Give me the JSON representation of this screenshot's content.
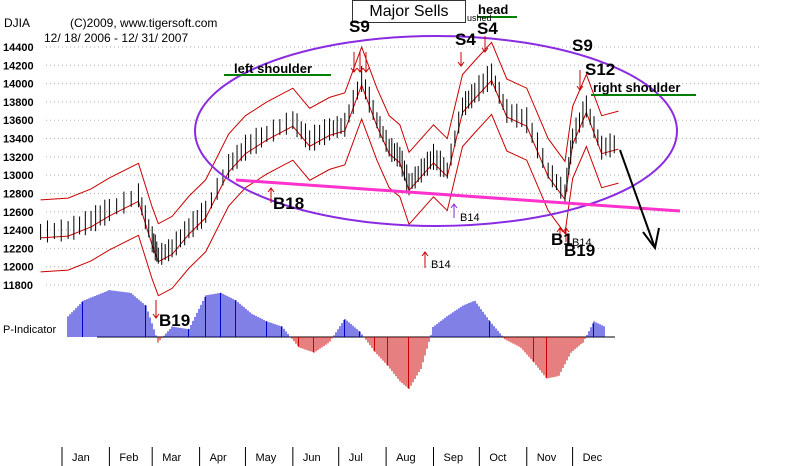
{
  "header": {
    "ticker": "DJIA",
    "copyright": "(C)2009, www.tigersoft.com",
    "date_range": "12/ 18/ 2006 - 12/ 31/ 2007",
    "title": "Major Sells",
    "indicator_label": "P-Indicator"
  },
  "annotations": {
    "head": "head",
    "left_shoulder": "left shoulder",
    "right_shoulder": "right shoulder",
    "small_label": "ushed"
  },
  "signals": {
    "s9_jul": "S9",
    "s4_sep": "S4",
    "s4_oct": "S4",
    "s9_nov": "S9",
    "s12_dec": "S12",
    "b19_feb": "B19",
    "b18_apr": "B18",
    "b14_aug": "B14",
    "b14_sep": "B14",
    "b14_nov": "B14",
    "b1_nov": "B1",
    "b19_nov": "B19"
  },
  "colors": {
    "price": "#000000",
    "bands": "#cc0000",
    "ellipse": "#8a2be2",
    "neckline": "#ff33cc",
    "positive": "#0000cc",
    "negative": "#cc0000",
    "shoulder_underline": "#008000",
    "grid": "#b0b0b0"
  },
  "chart_data": [
    {
      "type": "line",
      "title": "DJIA",
      "ylim": [
        11800,
        14400
      ],
      "y_ticks": [
        "14400",
        "14200",
        "14000",
        "13800",
        "13600",
        "13400",
        "13200",
        "13000",
        "12800",
        "12600",
        "12400",
        "12200",
        "12000",
        "11800"
      ],
      "x_ticks": [
        "Jan",
        "Feb",
        "Mar",
        "Apr",
        "May",
        "Jun",
        "Jul",
        "Aug",
        "Sep",
        "Oct",
        "Nov",
        "Dec"
      ],
      "series": [
        {
          "x": [
            "2006-12-18",
            "2007-01-05",
            "2007-01-20",
            "2007-02-01",
            "2007-02-20",
            "2007-03-01",
            "2007-03-05",
            "2007-03-14",
            "2007-03-25",
            "2007-04-05",
            "2007-04-20",
            "2007-05-01",
            "2007-05-15",
            "2007-06-01",
            "2007-06-12",
            "2007-06-25",
            "2007-07-05",
            "2007-07-16",
            "2007-07-26",
            "2007-08-03",
            "2007-08-10",
            "2007-08-16",
            "2007-08-24",
            "2007-09-01",
            "2007-09-10",
            "2007-09-20",
            "2007-09-28",
            "2007-10-09",
            "2007-10-19",
            "2007-11-01",
            "2007-11-15",
            "2007-11-26",
            "2007-12-01",
            "2007-12-10",
            "2007-12-20",
            "2007-12-31"
          ],
          "values": [
            12380,
            12400,
            12500,
            12620,
            12780,
            12300,
            12120,
            12200,
            12420,
            12600,
            13100,
            13300,
            13450,
            13600,
            13380,
            13500,
            13550,
            14050,
            13600,
            13300,
            13200,
            12900,
            13050,
            13200,
            13050,
            13750,
            13900,
            14100,
            13700,
            13600,
            13050,
            12800,
            13400,
            13750,
            13300,
            13350
          ]
        }
      ]
    },
    {
      "type": "bar",
      "title": "P-Indicator",
      "x_ticks": [
        "Jan",
        "Feb",
        "Mar",
        "Apr",
        "May",
        "Jun",
        "Jul",
        "Aug",
        "Sep",
        "Oct",
        "Nov",
        "Dec"
      ],
      "series": [
        {
          "x": [
            "2007-01-05",
            "2007-01-15",
            "2007-02-01",
            "2007-02-15",
            "2007-02-25",
            "2007-03-05",
            "2007-03-14",
            "2007-03-25",
            "2007-04-05",
            "2007-04-15",
            "2007-04-25",
            "2007-05-05",
            "2007-05-15",
            "2007-05-25",
            "2007-06-05",
            "2007-06-15",
            "2007-06-25",
            "2007-07-05",
            "2007-07-15",
            "2007-07-25",
            "2007-08-02",
            "2007-08-10",
            "2007-08-16",
            "2007-08-24",
            "2007-09-01",
            "2007-09-10",
            "2007-09-20",
            "2007-09-28",
            "2007-10-08",
            "2007-10-18",
            "2007-10-28",
            "2007-11-06",
            "2007-11-14",
            "2007-11-22",
            "2007-11-30",
            "2007-12-08",
            "2007-12-15",
            "2007-12-22"
          ],
          "values": [
            40,
            70,
            90,
            85,
            60,
            -10,
            20,
            15,
            80,
            85,
            70,
            45,
            30,
            20,
            -20,
            -30,
            -10,
            35,
            10,
            -30,
            -55,
            -85,
            -100,
            -60,
            20,
            40,
            60,
            70,
            30,
            -5,
            -20,
            -50,
            -80,
            -75,
            -30,
            -10,
            30,
            20
          ]
        }
      ]
    }
  ]
}
